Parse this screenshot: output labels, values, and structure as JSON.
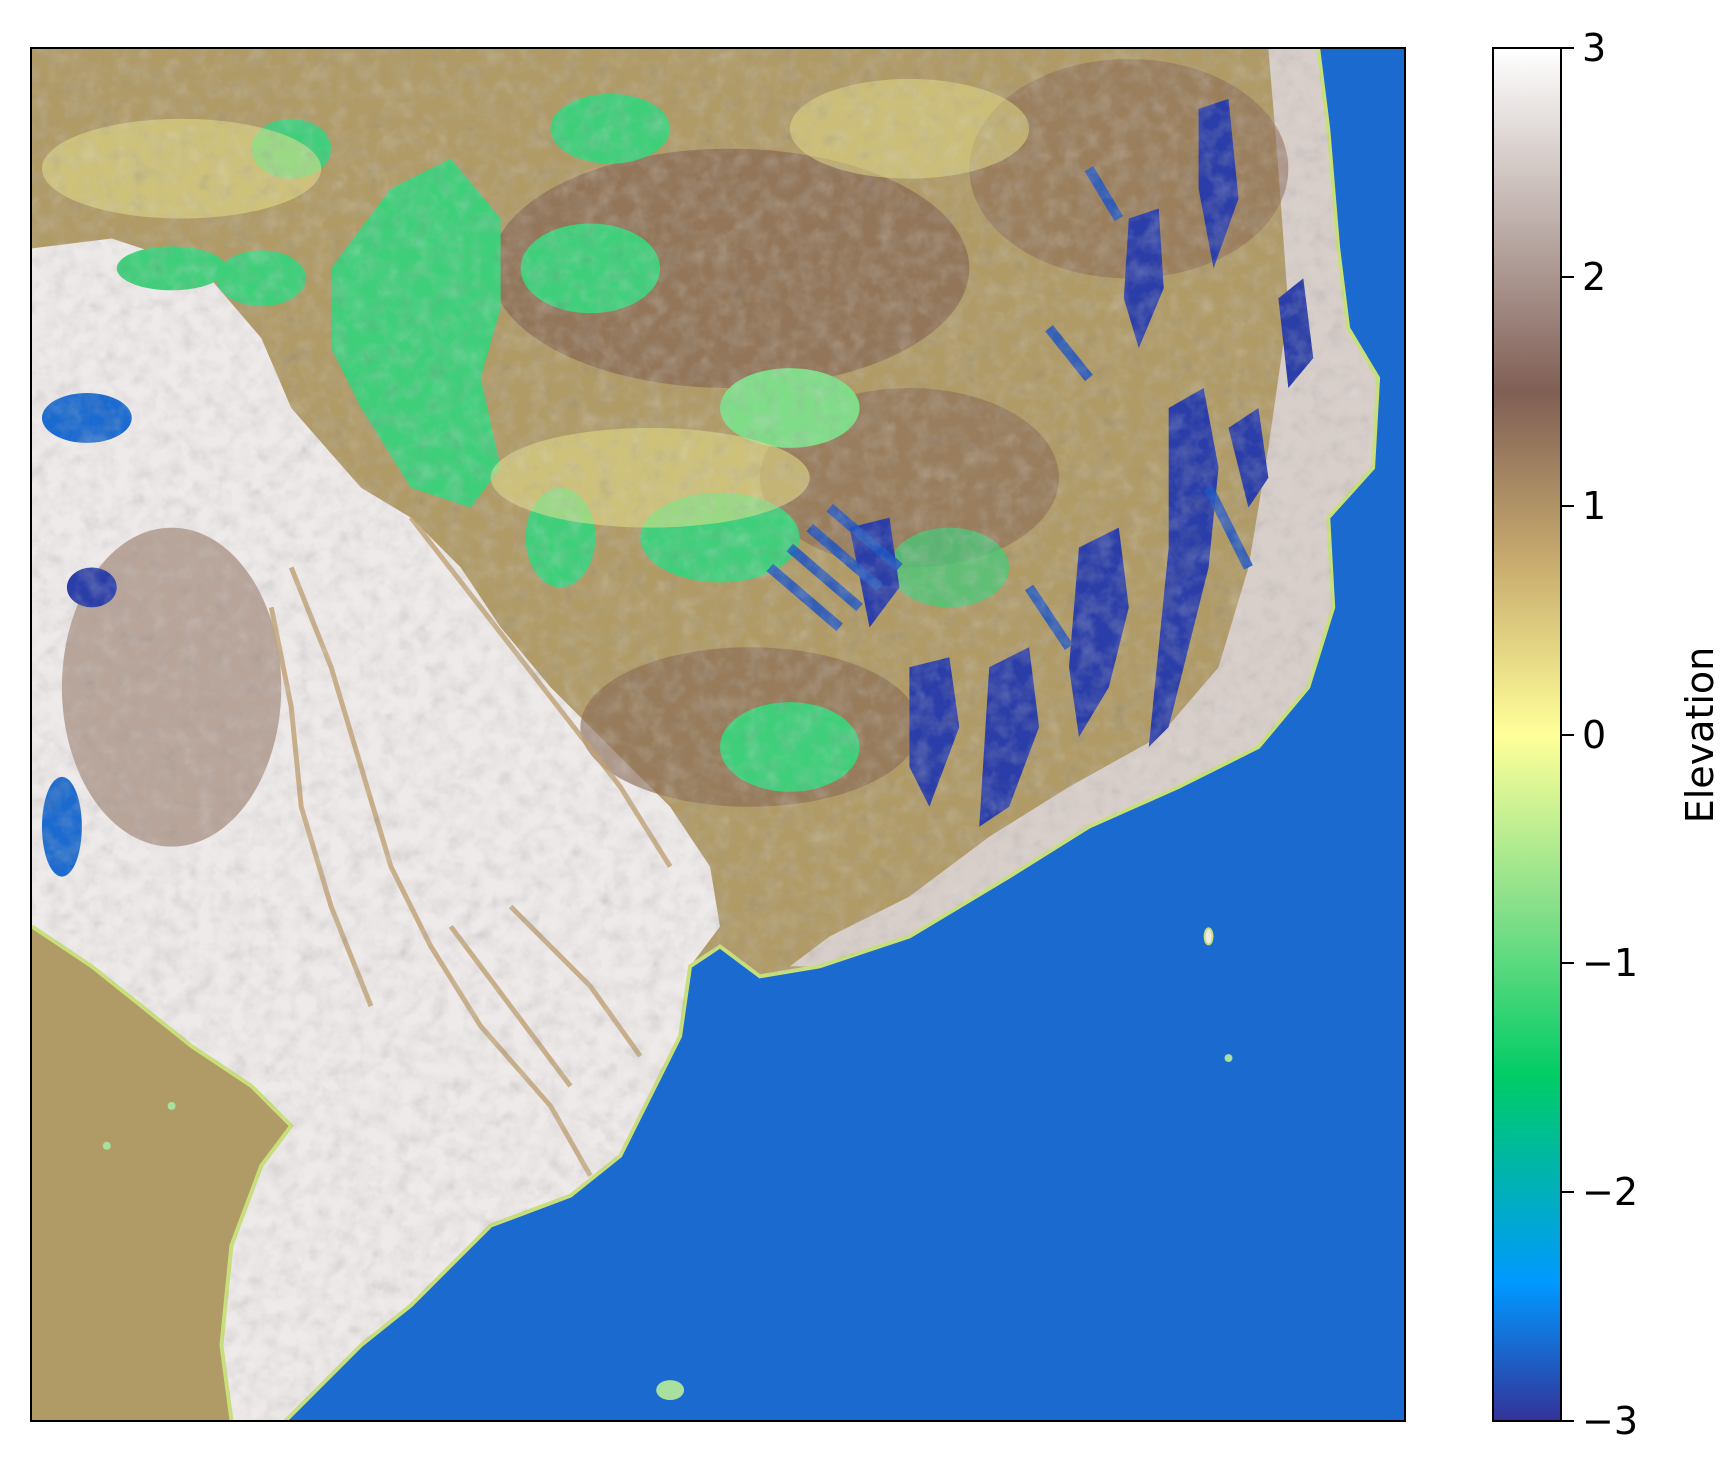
{
  "colorbar": {
    "label": "Elevation",
    "min": -3,
    "max": 3,
    "ticks": [
      {
        "value": 3,
        "label": "3"
      },
      {
        "value": 2,
        "label": "2"
      },
      {
        "value": 1,
        "label": "1"
      },
      {
        "value": 0,
        "label": "0"
      },
      {
        "value": -1,
        "label": "−1"
      },
      {
        "value": -2,
        "label": "−2"
      },
      {
        "value": -3,
        "label": "−3"
      }
    ],
    "colormap": "terrain",
    "stops": [
      {
        "v": -3.0,
        "color": "#333399"
      },
      {
        "v": -2.4,
        "color": "#0099ff"
      },
      {
        "v": -1.5,
        "color": "#00cc66"
      },
      {
        "v": -0.75,
        "color": "#88e08a"
      },
      {
        "v": 0.0,
        "color": "#ffff99"
      },
      {
        "v": 0.75,
        "color": "#c8ac6e"
      },
      {
        "v": 1.5,
        "color": "#805f55"
      },
      {
        "v": 2.25,
        "color": "#bfb0ab"
      },
      {
        "v": 3.0,
        "color": "#ffffff"
      }
    ]
  },
  "colors": {
    "ocean": "#1a6ad0",
    "lowland": "#f2eeee",
    "plateau": "#a88f5c",
    "forest": "#3fcf7a",
    "ridge": "#2a3da8"
  }
}
